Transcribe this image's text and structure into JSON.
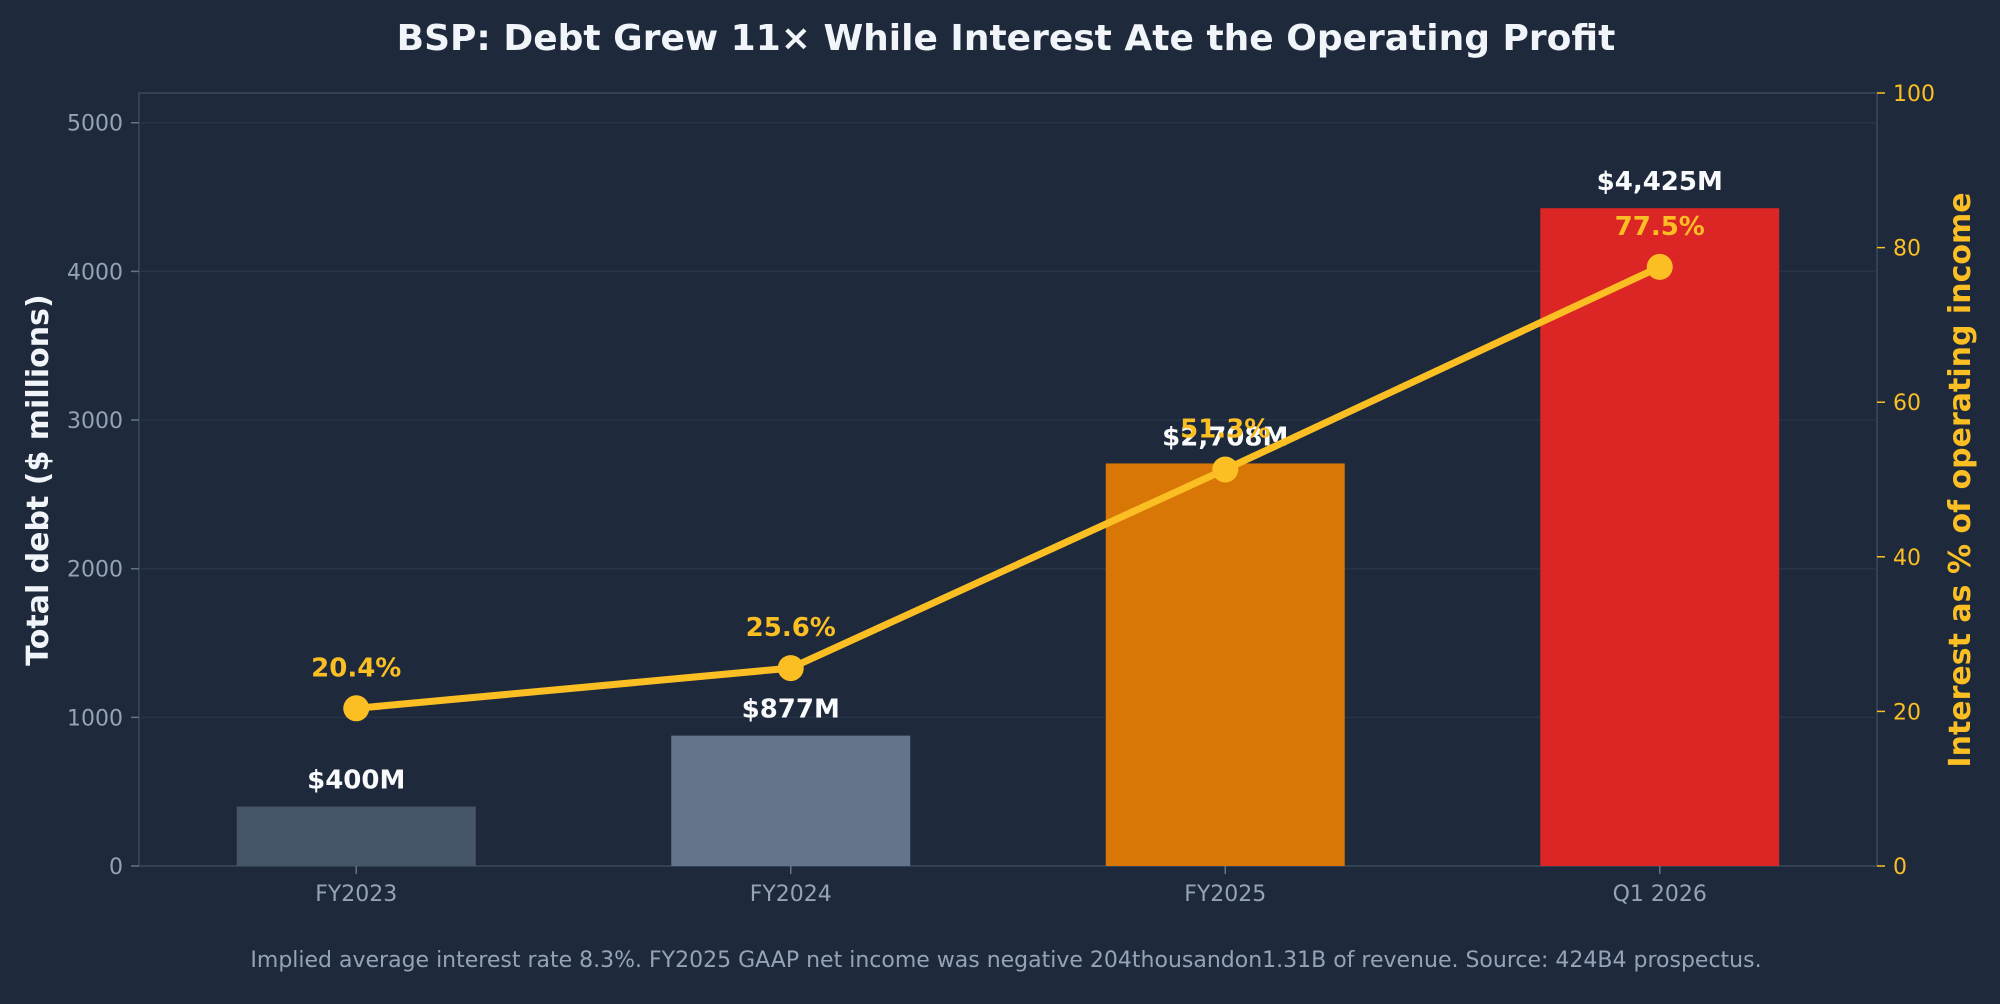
{
  "chart_data": {
    "type": "bar",
    "title": "BSP: Debt Grew 11× While Interest Ate the Operating Profit",
    "categories": [
      "FY2023",
      "FY2024",
      "FY2025",
      "Q1 2026"
    ],
    "ylabel": "Total debt ($ millions)",
    "ylabel_right": "Interest as % of operating income",
    "ylim": [
      0,
      5200
    ],
    "ylim_right": [
      0,
      100
    ],
    "yticks": [
      "0",
      "1000",
      "2000",
      "3000",
      "4000",
      "5000"
    ],
    "yticks_right": [
      "0",
      "20",
      "40",
      "60",
      "80",
      "100"
    ],
    "grid": true,
    "series": [
      {
        "type": "bar",
        "values": [
          400,
          877,
          2708,
          4425
        ],
        "data_labels": [
          "$400M",
          "$877M",
          "$2,708M",
          "$4,425M"
        ],
        "colors": [
          "#475569",
          "#64748b",
          "#d97706",
          "#dc2626"
        ]
      },
      {
        "type": "line",
        "axis": "right",
        "values": [
          20.4,
          25.6,
          51.3,
          77.5
        ],
        "data_labels": [
          "20.4%",
          "25.6%",
          "51.3%",
          "77.5%"
        ],
        "color": "#fbbf24"
      }
    ],
    "footer": "Implied average interest rate 8.3%. FY2025 GAAP net income was negative 204thousandon1.31B of revenue. Source: 424B4 prospectus."
  }
}
